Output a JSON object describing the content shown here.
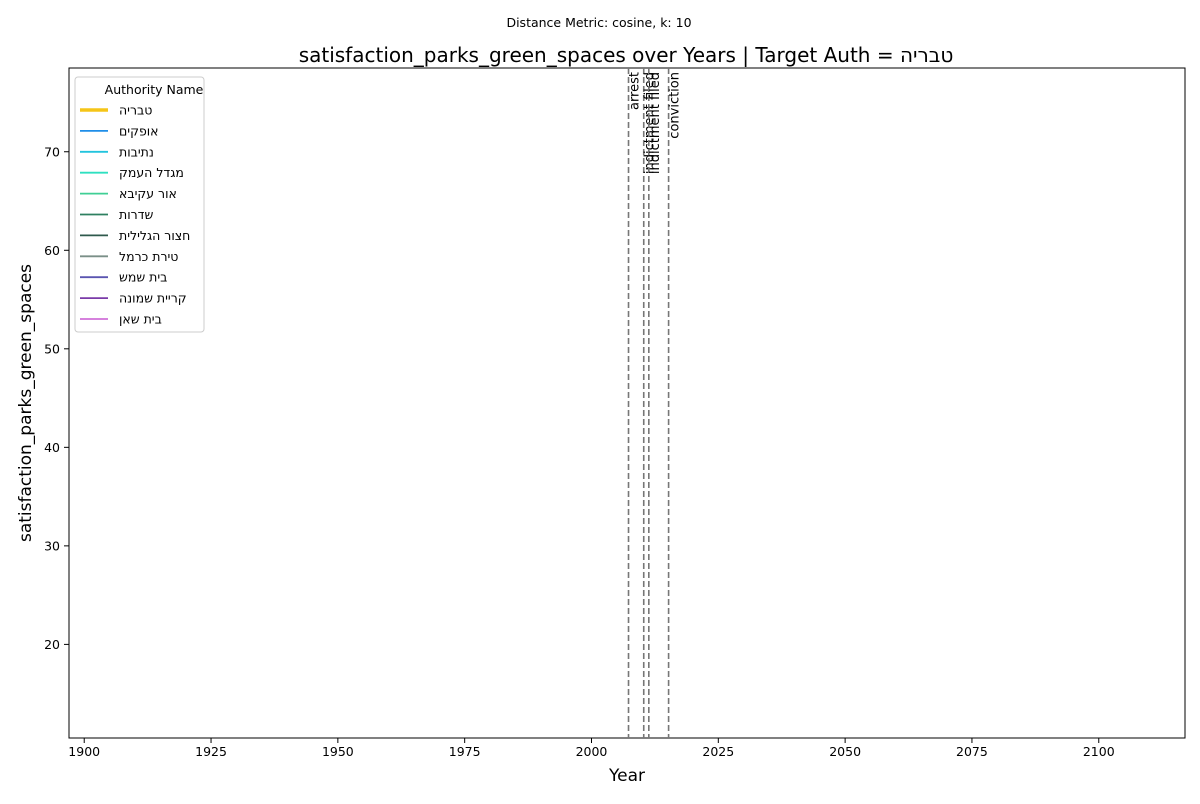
{
  "chart_data": {
    "type": "line",
    "suptitle": "Distance Metric: cosine, k: 10",
    "title": "satisfaction_parks_green_spaces over Years | Target Auth = טבריה",
    "xlabel": "Year",
    "ylabel": "satisfaction_parks_green_spaces",
    "xlim": [
      1897,
      2117
    ],
    "ylim": [
      10.5,
      78.5
    ],
    "xticks": [
      1900,
      1925,
      1950,
      1975,
      2000,
      2025,
      2050,
      2075,
      2100
    ],
    "yticks": [
      20,
      30,
      40,
      50,
      60,
      70
    ],
    "grid": false,
    "legend": {
      "title": "Authority Name",
      "placement": "top-left"
    },
    "series": [
      {
        "name": "טבריה",
        "color": "#f5c518",
        "target": true,
        "x": [],
        "y": []
      },
      {
        "name": "אופקים",
        "color": "#1f8ee8",
        "x": [],
        "y": []
      },
      {
        "name": "נתיבות",
        "color": "#22c4dd",
        "x": [],
        "y": []
      },
      {
        "name": "מגדל העמק",
        "color": "#2ee0c0",
        "x": [],
        "y": []
      },
      {
        "name": "אור עקיבא",
        "color": "#3fcf95",
        "x": [],
        "y": []
      },
      {
        "name": "שדרות",
        "color": "#2e8060",
        "x": [],
        "y": []
      },
      {
        "name": "חצור הגלילית",
        "color": "#2f5a4c",
        "x": [],
        "y": []
      },
      {
        "name": "טירת כרמל",
        "color": "#7a8f88",
        "x": [],
        "y": []
      },
      {
        "name": "בית שמש",
        "color": "#5a55b0",
        "x": [],
        "y": []
      },
      {
        "name": "קריית שמונה",
        "color": "#7a3aa8",
        "x": [],
        "y": []
      },
      {
        "name": "בית שאן",
        "color": "#d070d8",
        "x": [],
        "y": []
      }
    ],
    "events": [
      {
        "year": 2007.3,
        "label": "arrest"
      },
      {
        "year": 2010.3,
        "label": "indictment filed"
      },
      {
        "year": 2011.3,
        "label": "indictment filed"
      },
      {
        "year": 2015.2,
        "label": "conviction"
      }
    ]
  }
}
